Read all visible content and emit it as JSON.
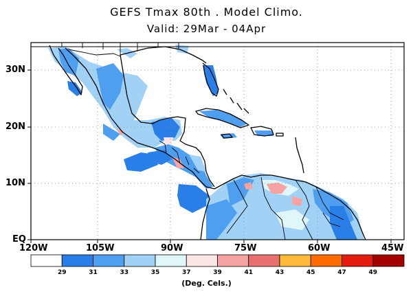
{
  "title": "GEFS Tmax 80th . Model Climo.",
  "subtitle": "Valid: 29Mar - 04Apr",
  "lat_labels": [
    "30N",
    "20N",
    "10N",
    "EQ"
  ],
  "lon_labels": [
    "120W",
    "105W",
    "90W",
    "75W",
    "60W",
    "45W"
  ],
  "colorbar": {
    "colors": [
      "#ffffff",
      "#2a7ee8",
      "#4f9ff0",
      "#a2d1f6",
      "#dff7f9",
      "#ffe6e6",
      "#f6a3a3",
      "#e87070",
      "#fdba3a",
      "#ff6a00",
      "#e31c0f",
      "#a50000"
    ],
    "labels": [
      "29",
      "31",
      "33",
      "35",
      "37",
      "39",
      "41",
      "43",
      "45",
      "47",
      "49"
    ],
    "units": "(Deg. Cels.)"
  }
}
